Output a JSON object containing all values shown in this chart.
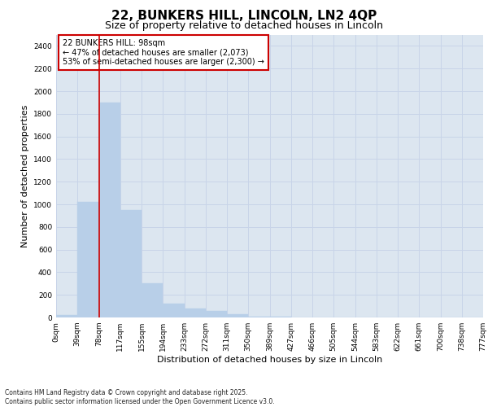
{
  "title_line1": "22, BUNKERS HILL, LINCOLN, LN2 4QP",
  "title_line2": "Size of property relative to detached houses in Lincoln",
  "xlabel": "Distribution of detached houses by size in Lincoln",
  "ylabel": "Number of detached properties",
  "bar_values": [
    20,
    1020,
    1900,
    950,
    300,
    120,
    80,
    55,
    30,
    10,
    4,
    2,
    1,
    0,
    0,
    0,
    0,
    0,
    0,
    0
  ],
  "bar_labels": [
    "0sqm",
    "39sqm",
    "78sqm",
    "117sqm",
    "155sqm",
    "194sqm",
    "233sqm",
    "272sqm",
    "311sqm",
    "350sqm",
    "389sqm",
    "427sqm",
    "466sqm",
    "505sqm",
    "544sqm",
    "583sqm",
    "622sqm",
    "661sqm",
    "700sqm",
    "738sqm",
    "777sqm"
  ],
  "bar_color": "#b8cfe8",
  "bar_edge_color": "#b8cfe8",
  "grid_color": "#c8d4e8",
  "background_color": "#dce6f0",
  "vline_x": 2.0,
  "vline_color": "#cc0000",
  "annotation_box_text": "22 BUNKERS HILL: 98sqm\n← 47% of detached houses are smaller (2,073)\n53% of semi-detached houses are larger (2,300) →",
  "annotation_box_color": "#cc0000",
  "ylim": [
    0,
    2500
  ],
  "yticks": [
    0,
    200,
    400,
    600,
    800,
    1000,
    1200,
    1400,
    1600,
    1800,
    2000,
    2200,
    2400
  ],
  "footnote": "Contains HM Land Registry data © Crown copyright and database right 2025.\nContains public sector information licensed under the Open Government Licence v3.0.",
  "title_fontsize": 11,
  "subtitle_fontsize": 9,
  "ylabel_fontsize": 8,
  "xlabel_fontsize": 8,
  "tick_fontsize": 6.5,
  "annotation_fontsize": 7,
  "footnote_fontsize": 5.5
}
